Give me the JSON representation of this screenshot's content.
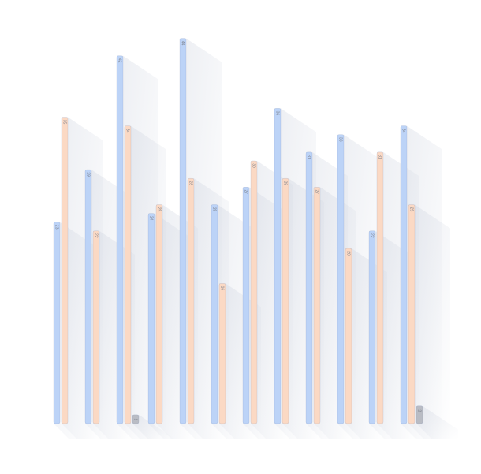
{
  "chart_data": {
    "type": "bar",
    "categories": [
      null,
      null,
      null,
      null,
      null,
      null,
      null,
      null,
      null,
      null,
      null,
      null
    ],
    "series": [
      {
        "color": "#bcd3f7",
        "values": [
          23,
          29,
          42,
          24,
          44,
          25,
          27,
          36,
          31,
          33,
          22,
          34
        ]
      },
      {
        "color": "#fbd9c4",
        "values": [
          35,
          22,
          34,
          25,
          28,
          16,
          30,
          28,
          27,
          20,
          31,
          25
        ]
      },
      {
        "color": "#b9bcc4",
        "values": [
          null,
          null,
          1,
          null,
          null,
          null,
          null,
          null,
          null,
          null,
          null,
          2
        ]
      }
    ]
  }
}
